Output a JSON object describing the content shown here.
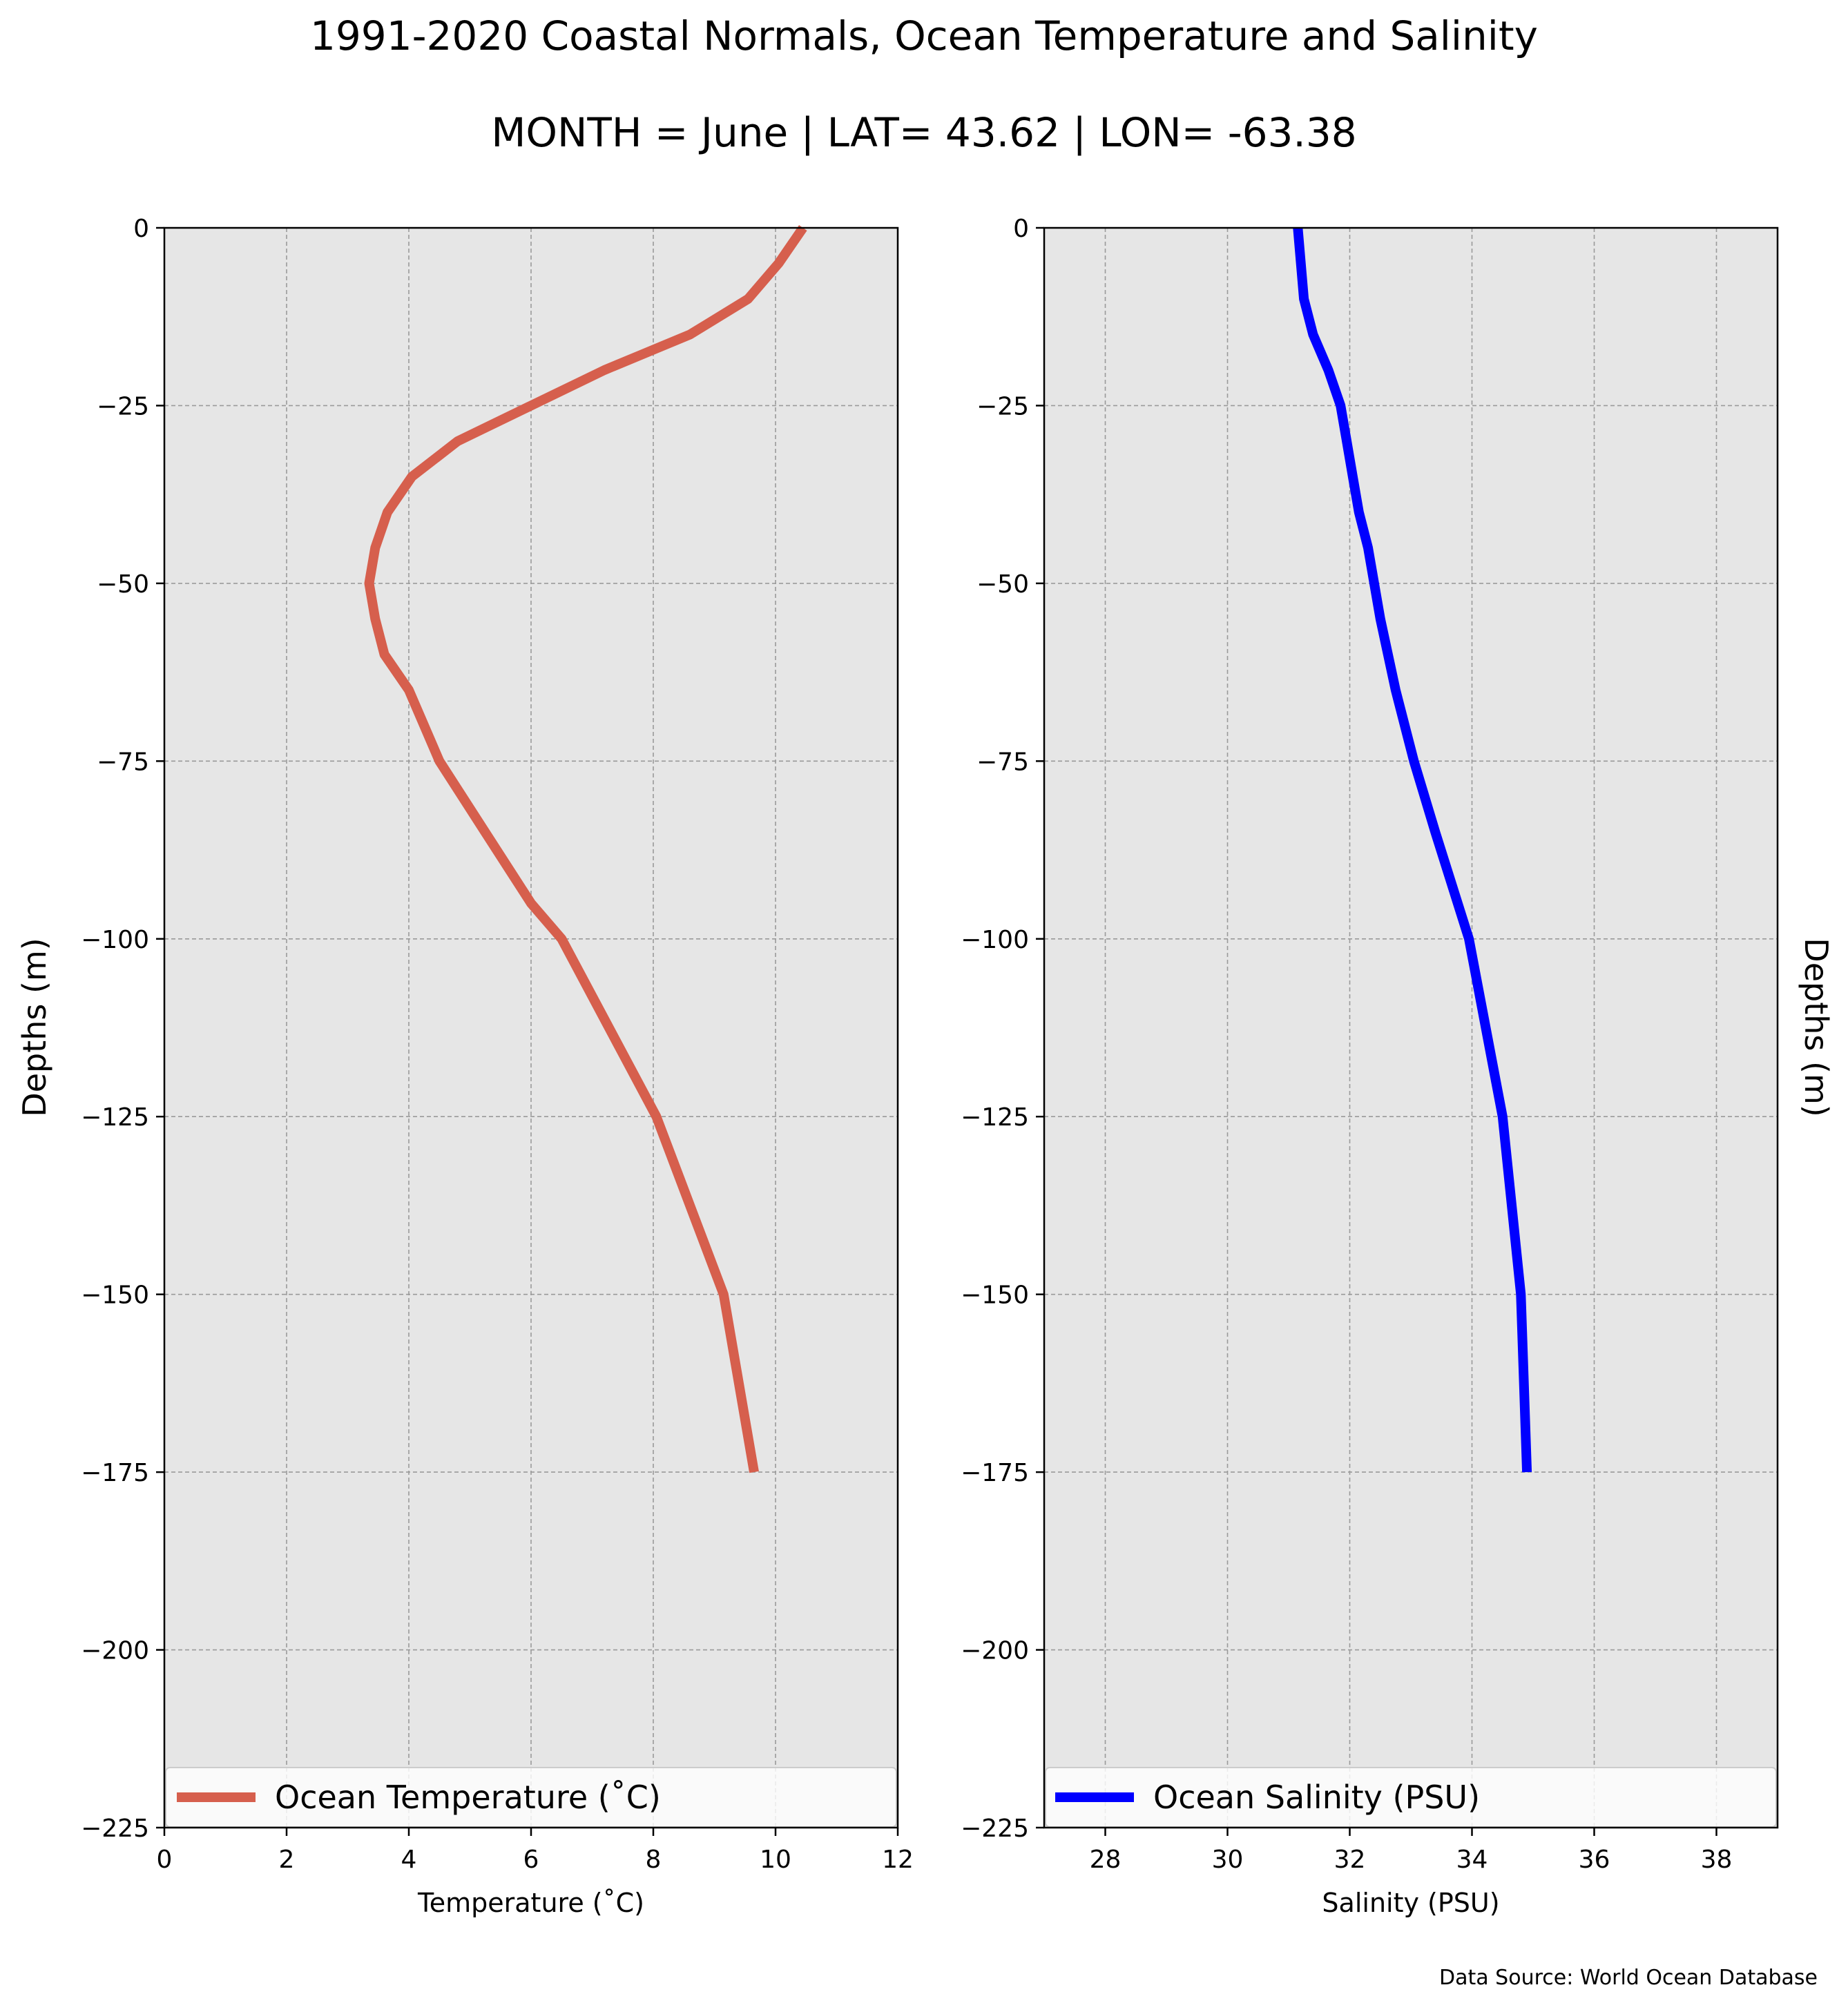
{
  "figure": {
    "title": "1991-2020 Coastal Normals, Ocean Temperature and Salinity",
    "subtitle": "MONTH = June | LAT= 43.62 | LON= -63.38",
    "source": "Data Source: World Ocean Database",
    "background": "#ffffff",
    "plot_background": "#e6e6e6",
    "grid_color": "#9a9a9a"
  },
  "chart_data": [
    {
      "type": "line",
      "orientation": "vertical-profile",
      "xlabel": "Temperature ($^\\circ$C)",
      "xlabel_display": "Temperature (˚C)",
      "ylabel": "Depths (m)",
      "xlim": [
        0,
        12
      ],
      "ylim": [
        -225,
        0
      ],
      "xticks": [
        0,
        2,
        4,
        6,
        8,
        10,
        12
      ],
      "yticks": [
        0,
        -25,
        -50,
        -75,
        -100,
        -125,
        -150,
        -175,
        -200,
        -225
      ],
      "ytick_labels": [
        "0",
        "−25",
        "−50",
        "−75",
        "−100",
        "−125",
        "−150",
        "−175",
        "−200",
        "−225"
      ],
      "grid": true,
      "legend_position": "lower",
      "series": [
        {
          "name": "Ocean Temperature (˚C)",
          "color": "#d65f4d",
          "x": [
            10.45,
            10.05,
            9.55,
            8.6,
            7.2,
            6.0,
            4.8,
            4.05,
            3.65,
            3.45,
            3.35,
            3.45,
            3.6,
            4.0,
            4.5,
            5.25,
            6.0,
            6.5,
            8.05,
            9.15,
            9.65
          ],
          "y": [
            0,
            -5,
            -10,
            -15,
            -20,
            -25,
            -30,
            -35,
            -40,
            -45,
            -50,
            -55,
            -60,
            -65,
            -75,
            -85,
            -95,
            -100,
            -125,
            -150,
            -175
          ]
        }
      ]
    },
    {
      "type": "line",
      "orientation": "vertical-profile",
      "xlabel": "Salinity (PSU)",
      "ylabel": "Depths (m)",
      "xlim": [
        27,
        39
      ],
      "ylim": [
        -225,
        0
      ],
      "xticks": [
        28,
        30,
        32,
        34,
        36,
        38
      ],
      "yticks": [
        0,
        -25,
        -50,
        -75,
        -100,
        -125,
        -150,
        -175,
        -200,
        -225
      ],
      "ytick_labels": [
        "0",
        "−25",
        "−50",
        "−75",
        "−100",
        "−125",
        "−150",
        "−175",
        "−200",
        "−225"
      ],
      "grid": true,
      "legend_position": "lower",
      "series": [
        {
          "name": "Ocean Salinity (PSU)",
          "color": "#0000ff",
          "x": [
            31.15,
            31.2,
            31.25,
            31.4,
            31.65,
            31.85,
            31.95,
            32.05,
            32.15,
            32.3,
            32.5,
            32.75,
            33.05,
            33.4,
            33.95,
            34.5,
            34.8,
            34.9
          ],
          "y": [
            0,
            -5,
            -10,
            -15,
            -20,
            -25,
            -30,
            -35,
            -40,
            -45,
            -55,
            -65,
            -75,
            -85,
            -100,
            -125,
            -150,
            -175
          ]
        }
      ]
    }
  ]
}
